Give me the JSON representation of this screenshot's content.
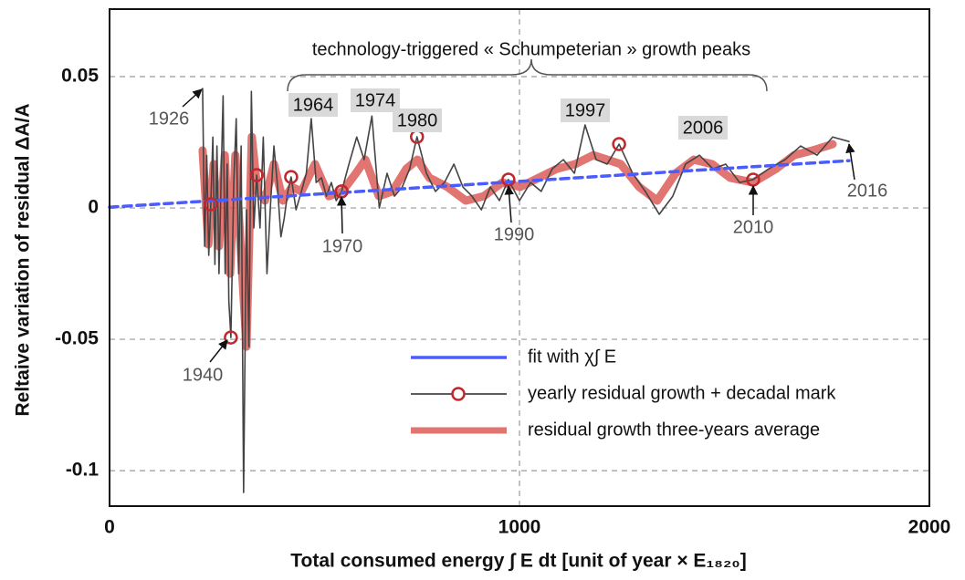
{
  "chart_data": {
    "type": "line",
    "title": null,
    "xlabel": "Total consumed energy  ∫ E dt   [unit of year × E₁₈₂₀]",
    "ylabel": "Reltaive variation of residual  ΔA/A",
    "xlim": [
      0,
      2000
    ],
    "ylim": [
      -0.1135,
      0.0757
    ],
    "xticks": [
      0,
      1000,
      2000
    ],
    "yticks": [
      0.05,
      0,
      -0.05,
      -0.1
    ],
    "grid": true,
    "legend": "lower right",
    "series": [
      {
        "name": "residual growth three-years average",
        "color": "#d9534f",
        "x": [
          227,
          241,
          254,
          267,
          281,
          294,
          307,
          321,
          334,
          347,
          361,
          379,
          401,
          423,
          445,
          468,
          501,
          535,
          568,
          601,
          624,
          657,
          690,
          724,
          751,
          780,
          824,
          869,
          913,
          958,
          1002,
          1047,
          1091,
          1136,
          1180,
          1214,
          1247,
          1292,
          1336,
          1381,
          1425,
          1470,
          1514,
          1570,
          1626,
          1670,
          1715,
          1764
        ],
        "values": [
          0.0219,
          -0.0139,
          0.0167,
          -0.0146,
          0.0201,
          -0.025,
          0.0201,
          -0.018,
          -0.0528,
          0.0271,
          0.0063,
          0.0028,
          0.0167,
          0.0028,
          0.008,
          0.0063,
          0.0167,
          0.0045,
          0.0063,
          0.0132,
          0.0184,
          0.0045,
          0.0063,
          0.0149,
          0.0184,
          0.0115,
          0.008,
          0.0028,
          0.0045,
          0.0097,
          0.008,
          0.0115,
          0.0149,
          0.0167,
          0.0201,
          0.0184,
          0.0167,
          0.008,
          0.0028,
          0.0132,
          0.0184,
          0.0167,
          0.0115,
          0.0097,
          0.0149,
          0.0201,
          0.0219,
          0.0243
        ]
      },
      {
        "name": "yearly residual growth + decadal mark",
        "color": "#444444",
        "x": [
          227,
          232,
          237,
          242,
          247,
          252,
          257,
          262,
          267,
          272,
          277,
          282,
          287,
          291,
          296,
          303,
          309,
          315,
          321,
          327,
          334,
          340,
          346,
          352,
          359,
          367,
          375,
          384,
          392,
          401,
          409,
          418,
          426,
          435,
          443,
          455,
          468,
          480,
          492,
          504,
          517,
          529,
          541,
          553,
          566,
          584,
          603,
          621,
          640,
          658,
          677,
          695,
          714,
          732,
          750,
          773,
          795,
          817,
          840,
          862,
          884,
          907,
          929,
          951,
          973,
          1000,
          1027,
          1053,
          1080,
          1107,
          1134,
          1160,
          1187,
          1214,
          1243,
          1276,
          1307,
          1341,
          1374,
          1405,
          1439,
          1472,
          1503,
          1537,
          1570,
          1608,
          1648,
          1686,
          1726,
          1764,
          1804
        ],
        "values": [
          0.0455,
          -0.0146,
          0.02,
          -0.018,
          0.0014,
          0.027,
          -0.0215,
          0.0236,
          -0.025,
          0.0097,
          0.0427,
          -0.025,
          0.0167,
          -0.0354,
          -0.0493,
          0.0097,
          0.034,
          -0.025,
          0.0236,
          -0.1083,
          -0.0007,
          -0.0528,
          0.0444,
          -0.0076,
          0.0125,
          -0.0076,
          0.027,
          -0.025,
          -0.0007,
          0.0236,
          0.0097,
          -0.011,
          -0.004,
          0.0063,
          0.0118,
          -0.0007,
          0.0063,
          0.0132,
          0.034,
          0.0097,
          0.0115,
          0.0045,
          0.0097,
          0.0028,
          0.0063,
          0.0167,
          0.027,
          0.0184,
          0.035,
          0,
          0.0132,
          0.0045,
          0.008,
          0.0149,
          0.0271,
          0.0132,
          0.0063,
          0.0097,
          0.0167,
          0.008,
          0.0045,
          -0.0007,
          0.008,
          0.0028,
          0.0108,
          0.0028,
          0.0097,
          0.0063,
          0.0149,
          0.0184,
          0.0132,
          0.0316,
          0.0184,
          0.0167,
          0.0243,
          0.0132,
          0.0063,
          -0.0024,
          0.0045,
          0.0167,
          0.0201,
          0.0149,
          0.0167,
          0.0097,
          0.0108,
          0.0149,
          0.0184,
          0.0236,
          0.0201,
          0.027,
          0.0253
        ]
      },
      {
        "name": "fit with  χ∫ E",
        "color": "#4a5cff",
        "x": [
          0,
          1804
        ],
        "values": [
          0.0003,
          0.018
        ]
      }
    ],
    "decadal_marks": {
      "color": "#c0282d",
      "x": [
        247,
        296,
        359,
        443,
        566,
        750,
        973,
        1243,
        1570
      ],
      "values": [
        0.0014,
        -0.0493,
        0.0125,
        0.0118,
        0.0063,
        0.0271,
        0.0108,
        0.0243,
        0.0108
      ]
    },
    "annotations": [
      "1926",
      "1940",
      "1970",
      "1990",
      "2010",
      "2016"
    ],
    "peak_labels": [
      "1964",
      "1974",
      "1980",
      "1997",
      "2006"
    ],
    "brace_label": "technology-triggered « Schumpeterian » growth peaks"
  }
}
